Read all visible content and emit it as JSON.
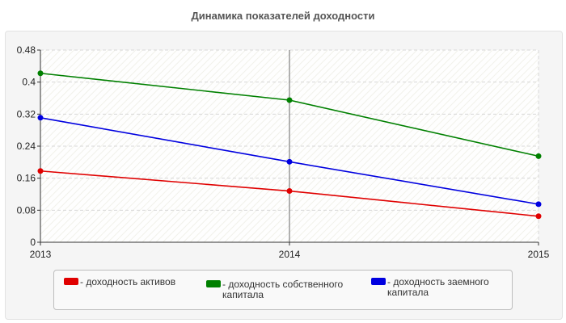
{
  "chart_data": {
    "type": "line",
    "title": "Динамика показателей доходности",
    "xlabel": "",
    "ylabel": "",
    "categories": [
      "2013",
      "2014",
      "2015"
    ],
    "ylim": [
      0,
      0.48
    ],
    "yticks": [
      "0",
      "0.08",
      "0.16",
      "0.24",
      "0.32",
      "0.4",
      "0.48"
    ],
    "grid": true,
    "legend_position": "bottom",
    "series": [
      {
        "name": "- доходность активов",
        "color": "#e00000",
        "values": [
          0.178,
          0.128,
          0.065
        ]
      },
      {
        "name": "- доходность собственного капитала",
        "color": "#008000",
        "values": [
          0.422,
          0.355,
          0.215
        ]
      },
      {
        "name": "- доходность заемного капитала",
        "color": "#0000e0",
        "values": [
          0.311,
          0.201,
          0.095
        ]
      }
    ]
  }
}
